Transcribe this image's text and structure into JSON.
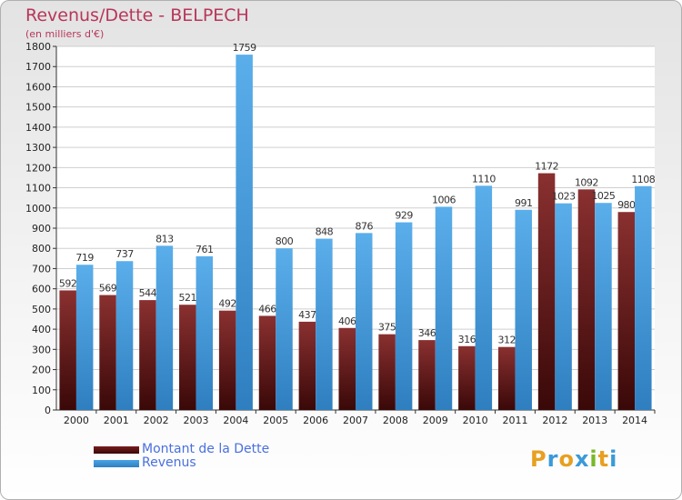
{
  "title": "Revenus/Dette - BELPECH",
  "subtitle": "(en milliers d'€)",
  "legend": [
    {
      "label": "Montant de la Dette",
      "color": "#7a1c1c"
    },
    {
      "label": "Revenus",
      "color": "#4aa3e6"
    }
  ],
  "logo": {
    "letters": [
      "P",
      "r",
      "o",
      "x",
      "i",
      "t",
      "i"
    ],
    "colors": [
      "#e8a020",
      "#3a9ad9",
      "#e8a020",
      "#3a9ad9",
      "#7ab828",
      "#e8a020",
      "#3a9ad9"
    ]
  },
  "chart_data": {
    "type": "bar",
    "categories": [
      "2000",
      "2001",
      "2002",
      "2003",
      "2004",
      "2005",
      "2006",
      "2007",
      "2008",
      "2009",
      "2010",
      "2011",
      "2012",
      "2013",
      "2014"
    ],
    "series": [
      {
        "name": "Montant de la Dette",
        "color": "#7a1c1c",
        "values": [
          592,
          569,
          544,
          521,
          492,
          466,
          437,
          406,
          375,
          346,
          316,
          312,
          1172,
          1092,
          980
        ]
      },
      {
        "name": "Revenus",
        "color": "#4aa3e6",
        "values": [
          719,
          737,
          813,
          761,
          1759,
          800,
          848,
          876,
          929,
          1006,
          1110,
          991,
          1023,
          1025,
          1108
        ]
      }
    ],
    "title": "Revenus/Dette - BELPECH",
    "ylabel": "(en milliers d'€)",
    "xlabel": "",
    "ylim": [
      0,
      1800
    ],
    "yticks": [
      "0",
      "100",
      "200",
      "300",
      "400",
      "500",
      "600",
      "700",
      "800",
      "900",
      "1000",
      "1100",
      "1200",
      "1300",
      "1400",
      "1500",
      "1600",
      "1700",
      "1800"
    ],
    "grid": true,
    "legend_position": "bottom-left"
  }
}
